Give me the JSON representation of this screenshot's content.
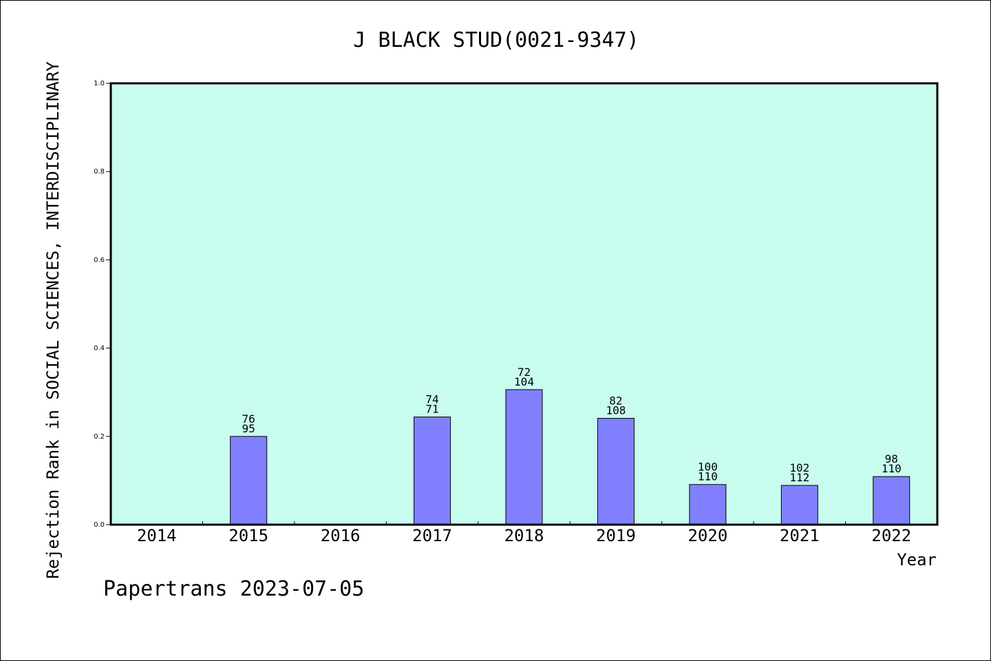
{
  "colors": {
    "plot_background": "#c8fcee",
    "bar_fill": "#8080ff",
    "bar_stroke": "#000000",
    "axis": "#000000"
  },
  "footer": "Papertrans 2023-07-05",
  "chart_data": {
    "type": "bar",
    "title": "J BLACK STUD(0021-9347)",
    "xlabel": "Year",
    "ylabel": "Rejection Rank in SOCIAL SCIENCES, INTERDISCIPLINARY",
    "ylim": [
      0,
      1.0
    ],
    "yticks": [
      "0.0",
      "0.2",
      "0.4",
      "0.6",
      "0.8",
      "1.0"
    ],
    "grid": false,
    "categories": [
      "2014",
      "2015",
      "2016",
      "2017",
      "2018",
      "2019",
      "2020",
      "2021",
      "2022"
    ],
    "values": [
      null,
      0.2,
      null,
      0.244,
      0.306,
      0.241,
      0.091,
      0.089,
      0.109
    ],
    "labels_top": [
      "",
      "76",
      "",
      "74",
      "72",
      "82",
      "100",
      "102",
      "98"
    ],
    "labels_bottom": [
      "",
      "95",
      "",
      "71",
      "104",
      "108",
      "110",
      "112",
      "110"
    ]
  }
}
